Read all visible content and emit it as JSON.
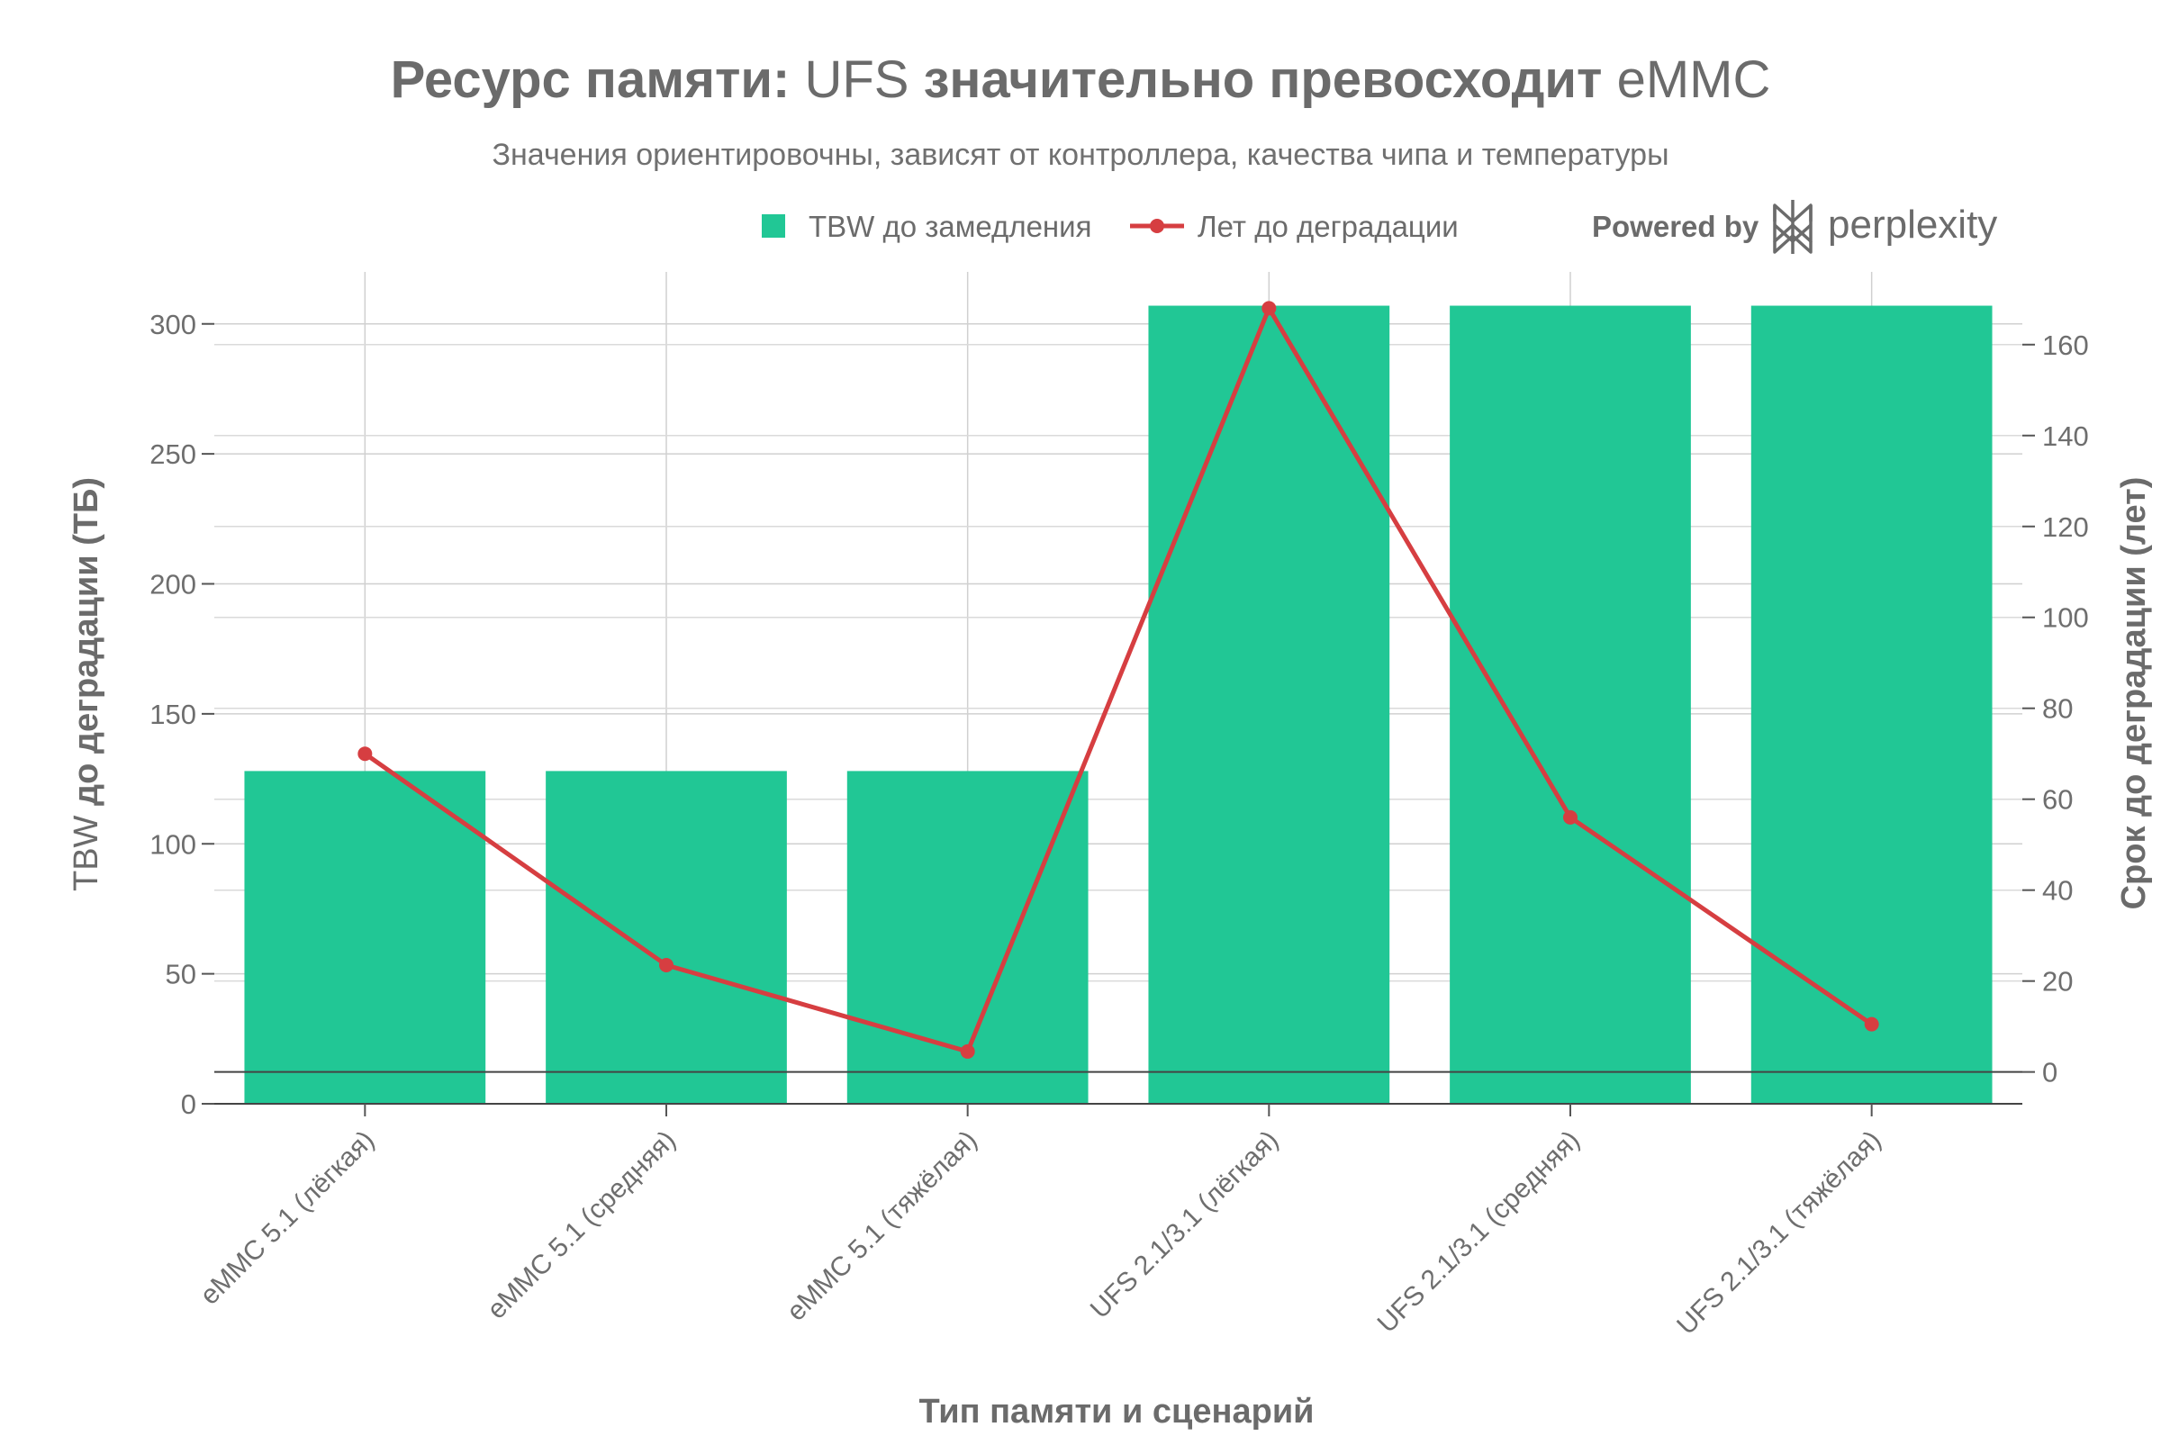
{
  "header": {
    "title_parts": [
      {
        "text": "Ресурс памяти",
        "bold": true
      },
      {
        "text": ": ",
        "bold": true
      },
      {
        "text": "UFS",
        "bold": false
      },
      {
        "text": " значительно превосходит ",
        "bold": true
      },
      {
        "text": "eMMC",
        "bold": false
      }
    ],
    "subtitle": "Значения ориентировочны, зависят от контроллера, качества чипа и температуры"
  },
  "branding": {
    "powered_by": "Powered by",
    "name": "perplexity",
    "icon": "perplexity-logo-icon"
  },
  "chart_data": {
    "type": "bar",
    "categories": [
      "eMMC 5.1 (лёгкая)",
      "eMMC 5.1 (средняя)",
      "eMMC 5.1 (тяжёлая)",
      "UFS 2.1/3.1 (лёгкая)",
      "UFS 2.1/3.1 (средняя)",
      "UFS 2.1/3.1 (тяжёлая)"
    ],
    "series": [
      {
        "name": "TBW до замедления",
        "type": "bar",
        "axis": "left",
        "color": "#21c795",
        "values": [
          128,
          128,
          128,
          307,
          307,
          307
        ]
      },
      {
        "name": "Лет до деградации",
        "type": "line",
        "axis": "right",
        "color": "#d63e41",
        "values": [
          70,
          23.5,
          4.5,
          168,
          56,
          10.5
        ]
      }
    ],
    "xlabel": "Тип памяти и сценарий",
    "ylabel_parts": [
      {
        "text": "TBW",
        "bold": false
      },
      {
        "text": " до деградации (ТБ)",
        "bold": true
      }
    ],
    "y2label": "Срок до деградации (лет)",
    "ylim": [
      0,
      320
    ],
    "y2lim": [
      -7,
      176
    ],
    "yticks": [
      0,
      50,
      100,
      150,
      200,
      250,
      300
    ],
    "y2ticks": [
      0,
      20,
      40,
      60,
      80,
      100,
      120,
      140,
      160
    ],
    "grid": true,
    "legend_position": "top"
  }
}
